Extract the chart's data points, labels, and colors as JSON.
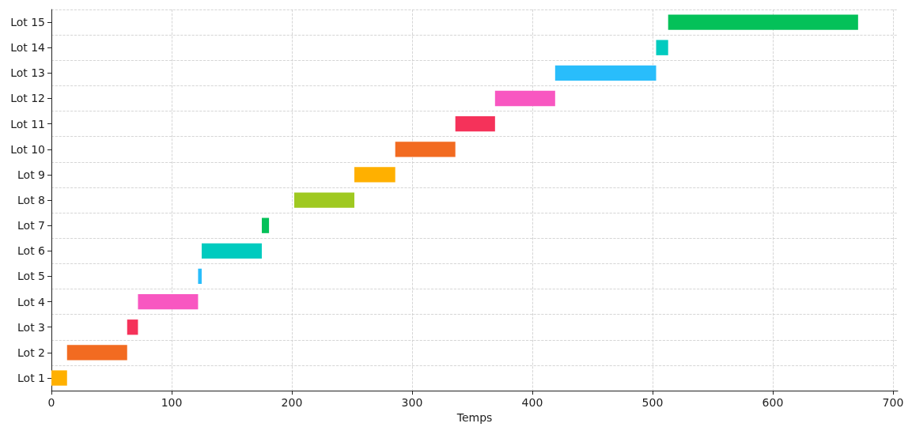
{
  "chart_data": {
    "type": "bar",
    "orientation": "horizontal",
    "xlabel": "Temps",
    "categories": [
      "Lot 15",
      "Lot 14",
      "Lot 13",
      "Lot 12",
      "Lot 11",
      "Lot 10",
      "Lot 9",
      "Lot 8",
      "Lot 7",
      "Lot 6",
      "Lot 5",
      "Lot 4",
      "Lot 3",
      "Lot 2",
      "Lot 1"
    ],
    "base": [
      513,
      503,
      419,
      369,
      336,
      286,
      252,
      202,
      175,
      125,
      122,
      72,
      63,
      13,
      0
    ],
    "values": [
      158,
      10,
      84,
      50,
      33,
      50,
      34,
      50,
      6,
      50,
      3,
      50,
      9,
      50,
      13
    ],
    "colors": [
      "#04c159",
      "#00cbbf",
      "#29bdfb",
      "#f857c1",
      "#f5325a",
      "#f26b21",
      "#ffb000",
      "#9fc921",
      "#04c159",
      "#00cbbf",
      "#29bdfb",
      "#f857c1",
      "#f5325a",
      "#f26b21",
      "#ffb000"
    ],
    "xlim": [
      0,
      704
    ],
    "xticks": [
      0,
      100,
      200,
      300,
      400,
      500,
      600,
      700
    ],
    "grid": true
  }
}
